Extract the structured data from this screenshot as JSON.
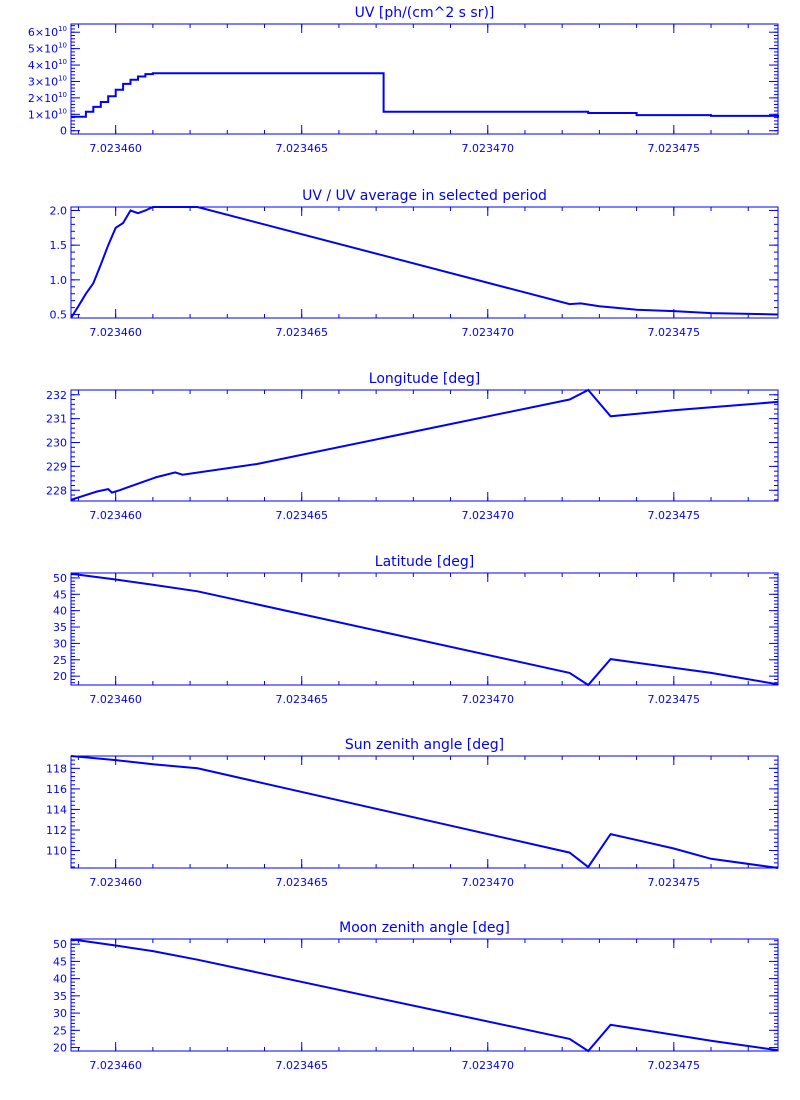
{
  "colors": {
    "plot": "#0000ff"
  },
  "chart_data": [
    {
      "type": "line",
      "title": "UV [ph/(cm^2 s sr)]",
      "xlim": [
        7.0234588,
        7.0234778
      ],
      "ylim": [
        -2000000000.0,
        65000000000.0
      ],
      "xticks": [
        7.02346,
        7.023465,
        7.02347,
        7.023475
      ],
      "xticklabels": [
        "7.023460",
        "7.023465",
        "7.023470",
        "7.023475"
      ],
      "yticks": [
        0,
        10000000000.0,
        20000000000.0,
        30000000000.0,
        40000000000.0,
        50000000000.0,
        60000000000.0
      ],
      "yticklabels": [
        {
          "base": "0",
          "exp": ""
        },
        {
          "base": "1×10",
          "exp": "10"
        },
        {
          "base": "2×10",
          "exp": "10"
        },
        {
          "base": "3×10",
          "exp": "10"
        },
        {
          "base": "4×10",
          "exp": "10"
        },
        {
          "base": "5×10",
          "exp": "10"
        },
        {
          "base": "6×10",
          "exp": "10"
        }
      ],
      "series": [
        {
          "step": true,
          "x": [
            7.0234588,
            7.0234592,
            7.0234594,
            7.0234596,
            7.0234598,
            7.02346,
            7.0234602,
            7.0234604,
            7.0234606,
            7.0234608,
            7.023461,
            7.0234672,
            7.0234727,
            7.023474,
            7.023476,
            7.0234778
          ],
          "y": [
            8500000000.0,
            11500000000.0,
            14500000000.0,
            17500000000.0,
            21000000000.0,
            25000000000.0,
            28500000000.0,
            31000000000.0,
            33000000000.0,
            34500000000.0,
            35000000000.0,
            11500000000.0,
            10800000000.0,
            9500000000.0,
            9000000000.0,
            8000000000.0
          ]
        }
      ]
    },
    {
      "type": "line",
      "title": "UV / UV average in selected period",
      "xlim": [
        7.0234588,
        7.0234778
      ],
      "ylim": [
        0.45,
        2.05
      ],
      "xticks": [
        7.02346,
        7.023465,
        7.02347,
        7.023475
      ],
      "xticklabels": [
        "7.023460",
        "7.023465",
        "7.023470",
        "7.023475"
      ],
      "yticks": [
        0.5,
        1.0,
        1.5,
        2.0
      ],
      "yticklabels": [
        "0.5",
        "1.0",
        "1.5",
        "2.0"
      ],
      "series": [
        {
          "x": [
            7.0234588,
            7.023459,
            7.0234592,
            7.0234594,
            7.0234596,
            7.0234598,
            7.02346,
            7.0234602,
            7.0234604,
            7.0234606,
            7.0234608,
            7.023461,
            7.0234612,
            7.0234622,
            7.0234722,
            7.0234725,
            7.023473,
            7.023474,
            7.023475,
            7.023476,
            7.0234778
          ],
          "y": [
            0.45,
            0.62,
            0.8,
            0.95,
            1.22,
            1.5,
            1.75,
            1.82,
            2.0,
            1.96,
            2.0,
            2.05,
            2.05,
            2.05,
            0.65,
            0.66,
            0.62,
            0.57,
            0.55,
            0.52,
            0.5
          ]
        }
      ]
    },
    {
      "type": "line",
      "title": "Longitude [deg]",
      "xlim": [
        7.0234588,
        7.0234778
      ],
      "ylim": [
        227.55,
        232.2
      ],
      "xticks": [
        7.02346,
        7.023465,
        7.02347,
        7.023475
      ],
      "xticklabels": [
        "7.023460",
        "7.023465",
        "7.023470",
        "7.023475"
      ],
      "yticks": [
        228,
        229,
        230,
        231,
        232
      ],
      "yticklabels": [
        "228",
        "229",
        "230",
        "231",
        "232"
      ],
      "series": [
        {
          "x": [
            7.0234588,
            7.023459,
            7.0234595,
            7.0234598,
            7.0234599,
            7.0234601,
            7.0234611,
            7.0234616,
            7.0234618,
            7.0234638,
            7.0234722,
            7.0234727,
            7.0234733,
            7.023475,
            7.0234778
          ],
          "y": [
            227.6,
            227.7,
            227.95,
            228.05,
            227.9,
            228.0,
            228.55,
            228.75,
            228.65,
            229.1,
            231.8,
            232.2,
            231.1,
            231.35,
            231.7
          ]
        }
      ]
    },
    {
      "type": "line",
      "title": "Latitude [deg]",
      "xlim": [
        7.0234588,
        7.0234778
      ],
      "ylim": [
        17.3,
        51.5
      ],
      "xticks": [
        7.02346,
        7.023465,
        7.02347,
        7.023475
      ],
      "xticklabels": [
        "7.023460",
        "7.023465",
        "7.023470",
        "7.023475"
      ],
      "yticks": [
        20,
        25,
        30,
        35,
        40,
        45,
        50
      ],
      "yticklabels": [
        "20",
        "25",
        "30",
        "35",
        "40",
        "45",
        "50"
      ],
      "series": [
        {
          "x": [
            7.0234588,
            7.02346,
            7.023461,
            7.0234622,
            7.0234722,
            7.0234727,
            7.0234733,
            7.023476,
            7.0234778
          ],
          "y": [
            51.3,
            49.5,
            47.9,
            45.9,
            21.0,
            17.3,
            25.2,
            21.0,
            17.5
          ]
        }
      ]
    },
    {
      "type": "line",
      "title": "Sun zenith angle [deg]",
      "xlim": [
        7.0234588,
        7.0234778
      ],
      "ylim": [
        108.3,
        119.2
      ],
      "xticks": [
        7.02346,
        7.023465,
        7.02347,
        7.023475
      ],
      "xticklabels": [
        "7.023460",
        "7.023465",
        "7.023470",
        "7.023475"
      ],
      "yticks": [
        110,
        112,
        114,
        116,
        118
      ],
      "yticklabels": [
        "110",
        "112",
        "114",
        "116",
        "118"
      ],
      "series": [
        {
          "x": [
            7.0234588,
            7.02346,
            7.023461,
            7.0234622,
            7.0234722,
            7.0234727,
            7.0234733,
            7.023475,
            7.023476,
            7.0234778
          ],
          "y": [
            119.2,
            118.8,
            118.4,
            118.0,
            109.8,
            108.4,
            111.6,
            110.2,
            109.2,
            108.3
          ]
        }
      ]
    },
    {
      "type": "line",
      "title": "Moon zenith angle [deg]",
      "xlim": [
        7.0234588,
        7.0234778
      ],
      "ylim": [
        19.0,
        51.5
      ],
      "xticks": [
        7.02346,
        7.023465,
        7.02347,
        7.023475
      ],
      "xticklabels": [
        "7.023460",
        "7.023465",
        "7.023470",
        "7.023475"
      ],
      "yticks": [
        20,
        25,
        30,
        35,
        40,
        45,
        50
      ],
      "yticklabels": [
        "20",
        "25",
        "30",
        "35",
        "40",
        "45",
        "50"
      ],
      "series": [
        {
          "x": [
            7.0234588,
            7.02346,
            7.023461,
            7.0234622,
            7.0234722,
            7.0234727,
            7.0234733,
            7.023476,
            7.0234778
          ],
          "y": [
            51.4,
            49.6,
            48.0,
            45.5,
            22.5,
            19.0,
            26.6,
            22.0,
            19.2
          ]
        }
      ]
    }
  ]
}
